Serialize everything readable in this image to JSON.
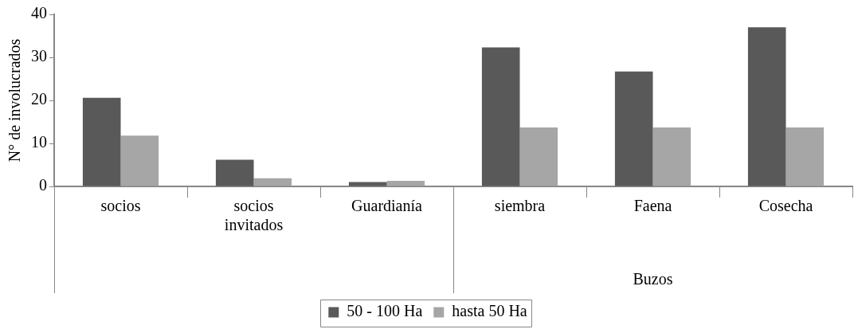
{
  "chart_data": {
    "type": "bar",
    "ylabel": "N° de involucrados",
    "categories": [
      "socios",
      "socios invitados",
      "Guardianía",
      "siembra",
      "Faena",
      "Cosecha"
    ],
    "series": [
      {
        "name": "50 - 100 Ha",
        "color": "#595959",
        "values": [
          20.6,
          6.2,
          1.0,
          32.3,
          26.7,
          37.0
        ]
      },
      {
        "name": "hasta 50 Ha",
        "color": "#a6a6a6",
        "values": [
          11.8,
          1.9,
          1.3,
          13.7,
          13.7,
          13.7
        ]
      }
    ],
    "ylim": [
      0,
      40
    ],
    "yticks": [
      0,
      10,
      20,
      30,
      40
    ],
    "grid": false,
    "legend": "bottom",
    "annotations": [
      "Buzos"
    ]
  }
}
